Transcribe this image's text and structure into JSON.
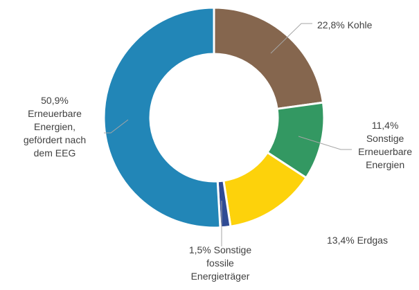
{
  "chart_data": {
    "type": "pie",
    "variant": "donut",
    "title": "",
    "legend": "none",
    "slices": [
      {
        "name": "Kohle",
        "value": 22.8,
        "color": "#85664e",
        "label_lines": [
          "22,8% Kohle"
        ]
      },
      {
        "name": "Sonstige Erneuerbare Energien",
        "value": 11.4,
        "color": "#339862",
        "label_lines": [
          "11,4%",
          "Sonstige",
          "Erneuerbare",
          "Energien"
        ]
      },
      {
        "name": "Erdgas",
        "value": 13.4,
        "color": "#fdd20b",
        "label_lines": [
          "13,4% Erdgas"
        ]
      },
      {
        "name": "Sonstige fossile Energieträger",
        "value": 1.5,
        "color": "#2f4b94",
        "label_lines": [
          "1,5% Sonstige",
          "fossile",
          "Energieträger"
        ]
      },
      {
        "name": "Erneuerbare Energien, gefördert nach dem EEG",
        "value": 50.9,
        "color": "#2286b7",
        "label_lines": [
          "50,9%",
          "Erneuerbare",
          "Energien,",
          "gefördert nach",
          "dem EEG"
        ]
      }
    ]
  }
}
